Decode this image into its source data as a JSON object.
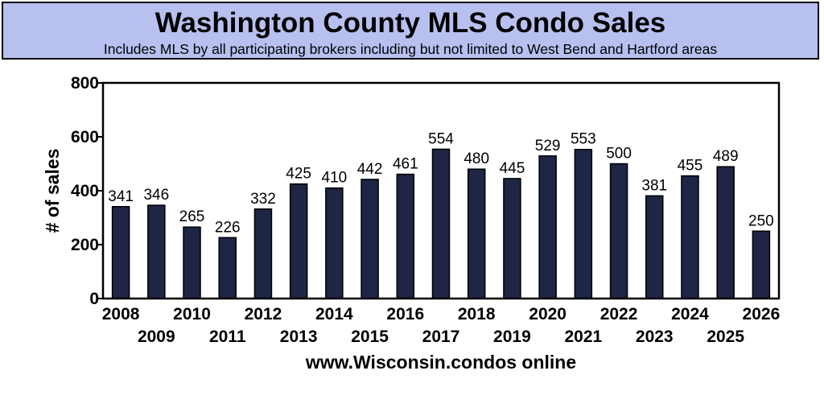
{
  "header": {
    "title": "Washington County MLS Condo Sales",
    "subtitle": "Includes MLS by all participating brokers including but not limited to West Bend and Hartford areas"
  },
  "colors": {
    "title_background": "#b8c0f0",
    "bar_fill": "#1e2545",
    "bar_stroke": "#000000"
  },
  "chart_data": {
    "type": "bar",
    "title": "Washington County MLS Condo Sales",
    "subtitle": "Includes MLS by all participating brokers including but not limited to West Bend and Hartford areas",
    "categories": [
      "2008",
      "2009",
      "2010",
      "2011",
      "2012",
      "2013",
      "2014",
      "2015",
      "2016",
      "2017",
      "2018",
      "2019",
      "2020",
      "2021",
      "2022",
      "2023",
      "2024",
      "2025",
      "2026"
    ],
    "values": [
      341,
      346,
      265,
      226,
      332,
      425,
      410,
      442,
      461,
      554,
      480,
      445,
      529,
      553,
      500,
      381,
      455,
      489,
      250
    ],
    "xlabel": "www.Wisconsin.condos online",
    "ylabel": "# of sales",
    "ylim": [
      0,
      800
    ],
    "yticks": [
      0,
      200,
      400,
      600,
      800
    ],
    "grid": false,
    "legend": false,
    "data_labels": true
  }
}
